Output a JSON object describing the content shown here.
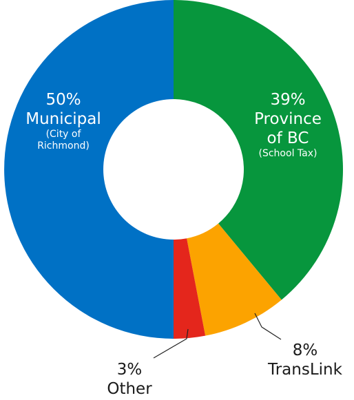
{
  "chart_data": {
    "type": "pie",
    "style": "donut",
    "slices": [
      {
        "id": "province",
        "value": 39,
        "pct_label": "39%",
        "name_lines": [
          "Province",
          "of BC"
        ],
        "sub_lines": [
          "(School Tax)"
        ],
        "color": "#07963d",
        "label_placement": "inside"
      },
      {
        "id": "translink",
        "value": 8,
        "pct_label": "8%",
        "name_lines": [
          "TransLink"
        ],
        "sub_lines": [],
        "color": "#fca300",
        "label_placement": "outside"
      },
      {
        "id": "other",
        "value": 3,
        "pct_label": "3%",
        "name_lines": [
          "Other"
        ],
        "sub_lines": [],
        "color": "#e4261c",
        "label_placement": "outside"
      },
      {
        "id": "municipal",
        "value": 50,
        "pct_label": "50%",
        "name_lines": [
          "Municipal"
        ],
        "sub_lines": [
          "(City of",
          "Richmond)"
        ],
        "color": "#0071c5",
        "label_placement": "inside"
      }
    ],
    "start": "top",
    "direction": "clockwise"
  }
}
